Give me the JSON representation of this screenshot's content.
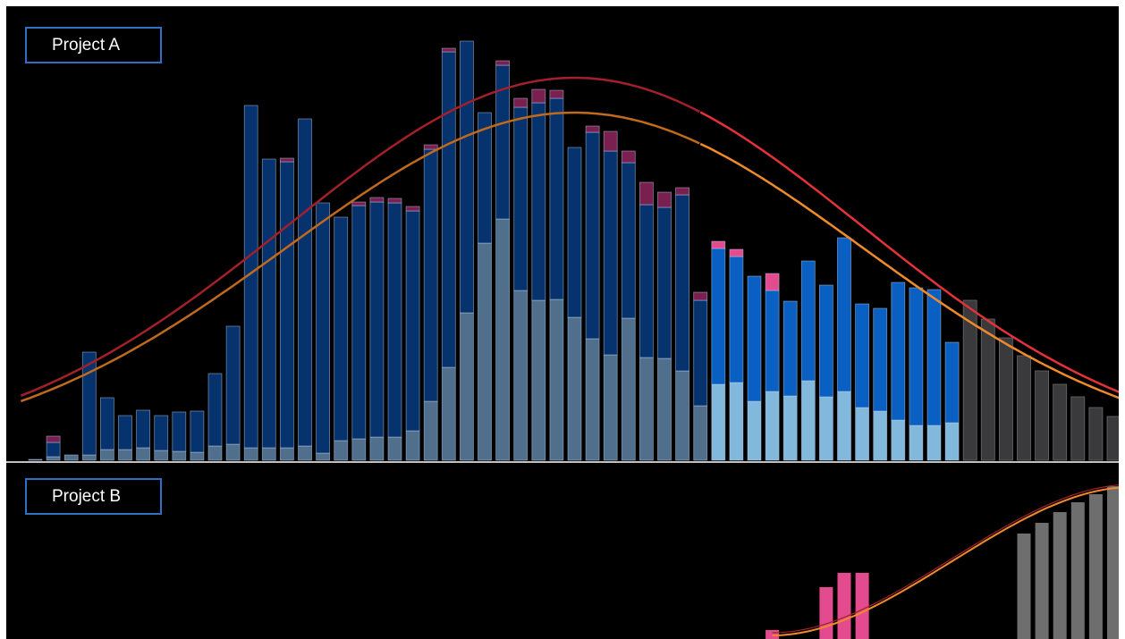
{
  "panels": [
    {
      "label": "Project A"
    },
    {
      "label": "Project B"
    }
  ],
  "colors": {
    "base": "#4f6f8c",
    "base_light": "#82b8dc",
    "mid_dark": "#06336e",
    "mid_bright": "#0a5fc2",
    "top_dark": "#7a2050",
    "top_bright": "#e34b8e",
    "forecast": "#3a3a3c",
    "forecast_b": "#6e6e6e",
    "curve_red": "#a3202b",
    "curve_red_bright": "#e5323a",
    "curve_orange": "#c06a1e",
    "curve_orange_bright": "#f08a2a",
    "divider": "#ffffff"
  },
  "chart_data": [
    {
      "type": "bar",
      "name": "Project A",
      "stacked": true,
      "segments": [
        "base",
        "mid",
        "top"
      ],
      "bars": [
        {
          "base": 1,
          "mid": 0,
          "top": 0,
          "phase": "past"
        },
        {
          "base": 4,
          "mid": 16,
          "top": 7,
          "phase": "past"
        },
        {
          "base": 6,
          "mid": 0,
          "top": 0,
          "phase": "past"
        },
        {
          "base": 6,
          "mid": 115,
          "top": 0,
          "phase": "past"
        },
        {
          "base": 12,
          "mid": 58,
          "top": 0,
          "phase": "past"
        },
        {
          "base": 12,
          "mid": 38,
          "top": 0,
          "phase": "past"
        },
        {
          "base": 14,
          "mid": 42,
          "top": 0,
          "phase": "past"
        },
        {
          "base": 11,
          "mid": 39,
          "top": 0,
          "phase": "past"
        },
        {
          "base": 10,
          "mid": 44,
          "top": 0,
          "phase": "past"
        },
        {
          "base": 9,
          "mid": 46,
          "top": 0,
          "phase": "past"
        },
        {
          "base": 16,
          "mid": 81,
          "top": 0,
          "phase": "past"
        },
        {
          "base": 18,
          "mid": 132,
          "top": 0,
          "phase": "past"
        },
        {
          "base": 14,
          "mid": 383,
          "top": 0,
          "phase": "past"
        },
        {
          "base": 14,
          "mid": 323,
          "top": 0,
          "phase": "past"
        },
        {
          "base": 14,
          "mid": 320,
          "top": 4,
          "phase": "past"
        },
        {
          "base": 16,
          "mid": 366,
          "top": 0,
          "phase": "past"
        },
        {
          "base": 8,
          "mid": 280,
          "top": 0,
          "phase": "past"
        },
        {
          "base": 22,
          "mid": 250,
          "top": 0,
          "phase": "past"
        },
        {
          "base": 24,
          "mid": 261,
          "top": 4,
          "phase": "past"
        },
        {
          "base": 26,
          "mid": 263,
          "top": 5,
          "phase": "past"
        },
        {
          "base": 26,
          "mid": 262,
          "top": 5,
          "phase": "past"
        },
        {
          "base": 33,
          "mid": 246,
          "top": 5,
          "phase": "past"
        },
        {
          "base": 66,
          "mid": 282,
          "top": 5,
          "phase": "past"
        },
        {
          "base": 104,
          "mid": 353,
          "top": 4,
          "phase": "past"
        },
        {
          "base": 165,
          "mid": 304,
          "top": 0,
          "phase": "past"
        },
        {
          "base": 243,
          "mid": 146,
          "top": 0,
          "phase": "past"
        },
        {
          "base": 270,
          "mid": 172,
          "top": 5,
          "phase": "past"
        },
        {
          "base": 190,
          "mid": 205,
          "top": 10,
          "phase": "past"
        },
        {
          "base": 179,
          "mid": 221,
          "top": 15,
          "phase": "past"
        },
        {
          "base": 180,
          "mid": 225,
          "top": 9,
          "phase": "past"
        },
        {
          "base": 160,
          "mid": 190,
          "top": 0,
          "phase": "past"
        },
        {
          "base": 136,
          "mid": 231,
          "top": 7,
          "phase": "past"
        },
        {
          "base": 118,
          "mid": 228,
          "top": 22,
          "phase": "past"
        },
        {
          "base": 159,
          "mid": 174,
          "top": 13,
          "phase": "past"
        },
        {
          "base": 115,
          "mid": 171,
          "top": 25,
          "phase": "past"
        },
        {
          "base": 114,
          "mid": 169,
          "top": 17,
          "phase": "past"
        },
        {
          "base": 100,
          "mid": 197,
          "top": 8,
          "phase": "past"
        },
        {
          "base": 61,
          "mid": 118,
          "top": 9,
          "phase": "past"
        },
        {
          "base": 85,
          "mid": 152,
          "top": 8,
          "phase": "current"
        },
        {
          "base": 87,
          "mid": 141,
          "top": 8,
          "phase": "current"
        },
        {
          "base": 66,
          "mid": 140,
          "top": 0,
          "phase": "current"
        },
        {
          "base": 77,
          "mid": 113,
          "top": 19,
          "phase": "current"
        },
        {
          "base": 72,
          "mid": 106,
          "top": 0,
          "phase": "current"
        },
        {
          "base": 89,
          "mid": 134,
          "top": 0,
          "phase": "current"
        },
        {
          "base": 71,
          "mid": 125,
          "top": 0,
          "phase": "current"
        },
        {
          "base": 77,
          "mid": 172,
          "top": 0,
          "phase": "current"
        },
        {
          "base": 59,
          "mid": 116,
          "top": 0,
          "phase": "current"
        },
        {
          "base": 55,
          "mid": 115,
          "top": 0,
          "phase": "current"
        },
        {
          "base": 45,
          "mid": 154,
          "top": 0,
          "phase": "current"
        },
        {
          "base": 39,
          "mid": 154,
          "top": 0,
          "phase": "current"
        },
        {
          "base": 39,
          "mid": 152,
          "top": 0,
          "phase": "current"
        },
        {
          "base": 42,
          "mid": 90,
          "top": 0,
          "phase": "current"
        },
        {
          "base": 179,
          "mid": 0,
          "top": 0,
          "phase": "forecast"
        },
        {
          "base": 158,
          "mid": 0,
          "top": 0,
          "phase": "forecast"
        },
        {
          "base": 137,
          "mid": 0,
          "top": 0,
          "phase": "forecast"
        },
        {
          "base": 117,
          "mid": 0,
          "top": 0,
          "phase": "forecast"
        },
        {
          "base": 100,
          "mid": 0,
          "top": 0,
          "phase": "forecast"
        },
        {
          "base": 85,
          "mid": 0,
          "top": 0,
          "phase": "forecast"
        },
        {
          "base": 71,
          "mid": 0,
          "top": 0,
          "phase": "forecast"
        },
        {
          "base": 59,
          "mid": 0,
          "top": 0,
          "phase": "forecast"
        },
        {
          "base": 49,
          "mid": 0,
          "top": 0,
          "phase": "forecast"
        },
        {
          "base": 40,
          "mid": 0,
          "top": 0,
          "phase": "forecast"
        },
        {
          "base": 31,
          "mid": 0,
          "top": 0,
          "phase": "forecast"
        }
      ],
      "curves": {
        "red": {
          "peak_index": 30,
          "peak": 422,
          "sigma": 16
        },
        "orange": {
          "peak_index": 30,
          "peak": 383,
          "sigma": 16
        },
        "bright_from_index": 37
      },
      "ylim": [
        0,
        480
      ]
    },
    {
      "type": "bar",
      "name": "Project B",
      "bars": [
        {
          "index": 41,
          "value": 10,
          "phase": "current"
        },
        {
          "index": 44,
          "value": 58,
          "phase": "current"
        },
        {
          "index": 45,
          "value": 74,
          "phase": "current"
        },
        {
          "index": 46,
          "value": 74,
          "phase": "current"
        },
        {
          "index": 55,
          "value": 118,
          "phase": "forecast"
        },
        {
          "index": 56,
          "value": 130,
          "phase": "forecast"
        },
        {
          "index": 57,
          "value": 142,
          "phase": "forecast"
        },
        {
          "index": 58,
          "value": 153,
          "phase": "forecast"
        },
        {
          "index": 59,
          "value": 162,
          "phase": "forecast"
        },
        {
          "index": 60,
          "value": 171,
          "phase": "forecast"
        },
        {
          "index": 61,
          "value": 178,
          "phase": "forecast"
        }
      ],
      "curve": {
        "from_index": 41,
        "from_value": 4,
        "to_index": 61,
        "to_value": 170
      },
      "ylim": [
        0,
        200
      ]
    }
  ]
}
